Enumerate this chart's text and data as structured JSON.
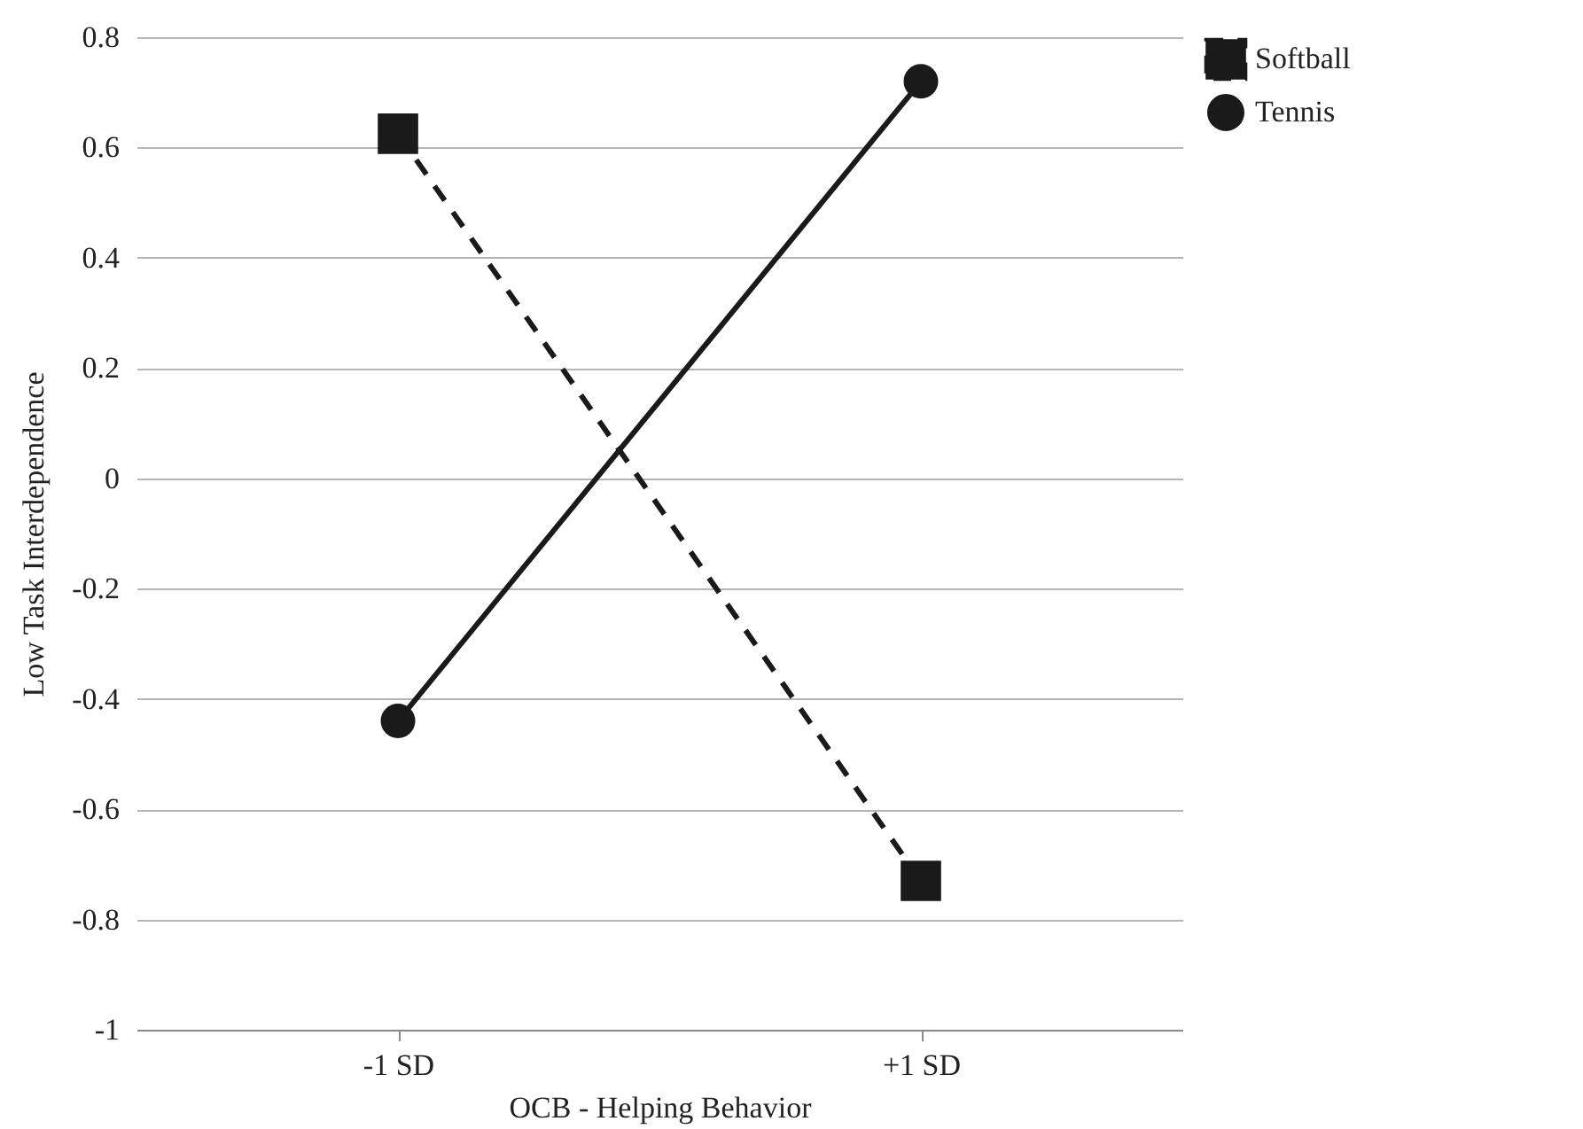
{
  "chart_data": {
    "type": "line",
    "xlabel": "OCB - Helping Behavior",
    "ylabel": "Low Task Interdependence",
    "categories": [
      "-1 SD",
      "+1 SD"
    ],
    "series": [
      {
        "name": "Softball",
        "color": "#1a1a1a",
        "values": [
          0.625,
          -0.73
        ],
        "marker": "square",
        "line_style": "dashed"
      },
      {
        "name": "Tennis",
        "color": "#1a1a1a",
        "values": [
          -0.44,
          0.72
        ],
        "marker": "circle",
        "line_style": "solid"
      }
    ],
    "ylim": [
      -1,
      0.8
    ],
    "yticks": [
      -1,
      -0.8,
      -0.6,
      -0.4,
      -0.2,
      0,
      0.2,
      0.4,
      0.6,
      0.8
    ],
    "grid": "y",
    "legend": "right"
  }
}
